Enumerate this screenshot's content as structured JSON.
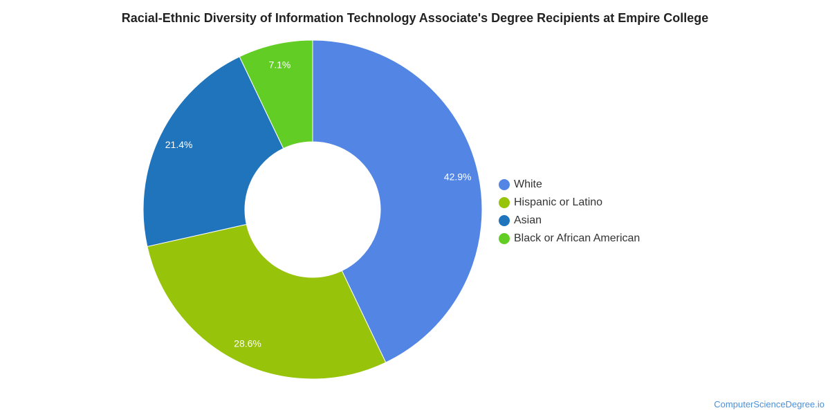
{
  "chart_data": {
    "type": "pie",
    "title": "Racial-Ethnic Diversity of Information Technology Associate's Degree Recipients at Empire College",
    "donut": true,
    "slices": [
      {
        "label": "White",
        "value": 42.9,
        "display": "42.9%",
        "color": "#5386e4"
      },
      {
        "label": "Hispanic or Latino",
        "value": 28.6,
        "display": "28.6%",
        "color": "#97c30a"
      },
      {
        "label": "Asian",
        "value": 21.4,
        "display": "21.4%",
        "color": "#1f74bc"
      },
      {
        "label": "Black or African American",
        "value": 7.1,
        "display": "7.1%",
        "color": "#62cd24"
      }
    ],
    "legend_position": "right"
  },
  "watermark": "ComputerScienceDegree.io"
}
